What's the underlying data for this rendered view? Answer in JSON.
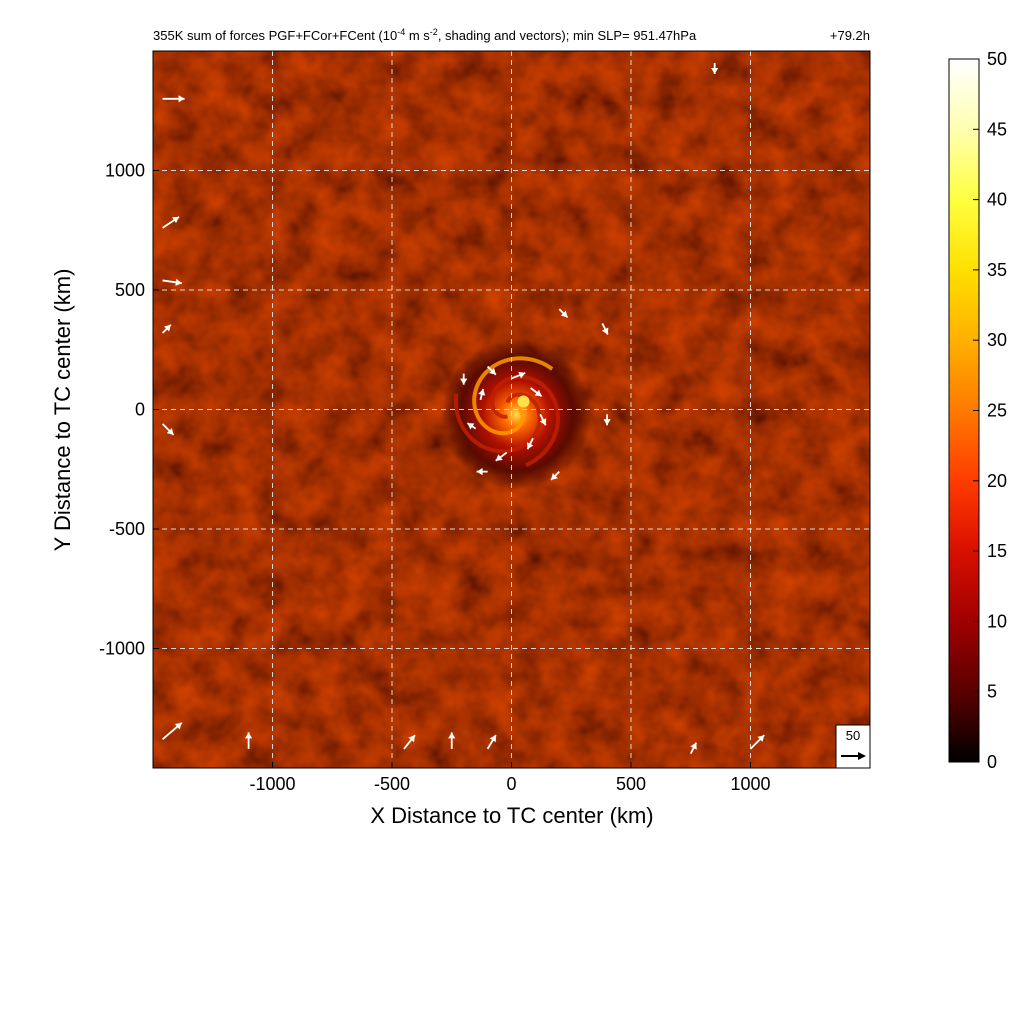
{
  "chart_data": {
    "type": "heatmap",
    "title_main": "355K sum of forces PGF+FCor+FCent (10",
    "title_exp": "-4",
    "title_unit_a": " m s",
    "title_unit_exp": "-2",
    "title_rest": ", shading and vectors); min SLP= 951.47hPa",
    "time_label": "+79.2h",
    "xlabel": "X Distance to TC center (km)",
    "ylabel": "Y Distance to TC center (km)",
    "xlim": [
      -1500,
      1500
    ],
    "ylim": [
      -1500,
      1500
    ],
    "xticks": [
      -1000,
      -500,
      0,
      500,
      1000
    ],
    "yticks": [
      -1000,
      -500,
      0,
      500,
      1000
    ],
    "grid": true,
    "colorbar": {
      "min": 0,
      "max": 50,
      "ticks": [
        0,
        5,
        10,
        15,
        20,
        25,
        30,
        35,
        40,
        45,
        50
      ],
      "colors": [
        "#000000",
        "#5a0000",
        "#a00000",
        "#d81000",
        "#ff3c00",
        "#ff7a00",
        "#ffb000",
        "#ffe000",
        "#ffff40",
        "#ffffb0",
        "#ffffff"
      ]
    },
    "reference_vector": {
      "value": "50"
    },
    "vectors": [
      {
        "x": -1460,
        "y": 1300,
        "u": 40,
        "v": 0
      },
      {
        "x": -1460,
        "y": 760,
        "u": 30,
        "v": 20
      },
      {
        "x": -1460,
        "y": 540,
        "u": 35,
        "v": -5
      },
      {
        "x": -1460,
        "y": 320,
        "u": 15,
        "v": 15
      },
      {
        "x": -1460,
        "y": -60,
        "u": 20,
        "v": -20
      },
      {
        "x": -1460,
        "y": -1380,
        "u": 35,
        "v": 30
      },
      {
        "x": -1100,
        "y": -1420,
        "u": 0,
        "v": 30
      },
      {
        "x": -450,
        "y": -1420,
        "u": 20,
        "v": 25
      },
      {
        "x": -250,
        "y": -1420,
        "u": 0,
        "v": 30
      },
      {
        "x": -100,
        "y": -1420,
        "u": 15,
        "v": 25
      },
      {
        "x": 1000,
        "y": -1420,
        "u": 25,
        "v": 25
      },
      {
        "x": -200,
        "y": 150,
        "u": 0,
        "v": -20
      },
      {
        "x": -100,
        "y": 180,
        "u": 15,
        "v": -15
      },
      {
        "x": 0,
        "y": 130,
        "u": 25,
        "v": 10
      },
      {
        "x": 80,
        "y": 90,
        "u": 20,
        "v": -15
      },
      {
        "x": 120,
        "y": -20,
        "u": 10,
        "v": -20
      },
      {
        "x": 90,
        "y": -120,
        "u": -10,
        "v": -20
      },
      {
        "x": -20,
        "y": -180,
        "u": -20,
        "v": -15
      },
      {
        "x": -150,
        "y": -80,
        "u": -15,
        "v": 10
      },
      {
        "x": -130,
        "y": 40,
        "u": 5,
        "v": 20
      },
      {
        "x": 200,
        "y": 420,
        "u": 15,
        "v": -15
      },
      {
        "x": 380,
        "y": 360,
        "u": 10,
        "v": -20
      },
      {
        "x": 400,
        "y": -20,
        "u": 0,
        "v": -20
      },
      {
        "x": 200,
        "y": -260,
        "u": -15,
        "v": -15
      },
      {
        "x": -100,
        "y": -260,
        "u": -20,
        "v": 0
      },
      {
        "x": 750,
        "y": -1440,
        "u": 10,
        "v": 20
      },
      {
        "x": 850,
        "y": 1450,
        "u": 0,
        "v": -20
      }
    ]
  }
}
